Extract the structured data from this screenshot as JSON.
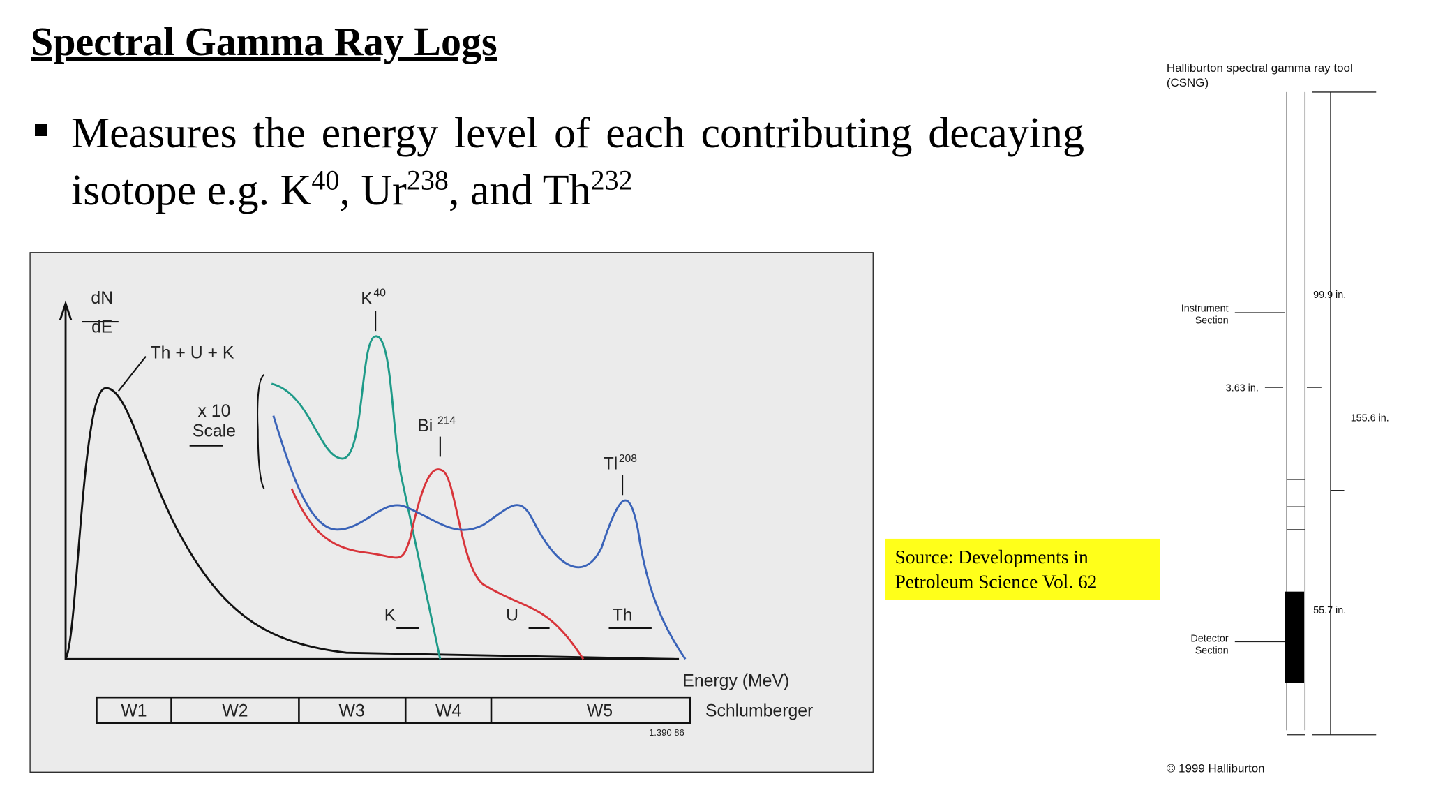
{
  "title": "Spectral Gamma Ray Logs",
  "bullet": [
    "Measures the energy level of each contributing decaying isotope e.g. K",
    "40",
    ", Ur",
    "238",
    ", and Th",
    "232"
  ],
  "figure": {
    "y_label_top": "dN",
    "y_label_bottom": "dE",
    "x_label": "Energy (MeV)",
    "sum_label": "Th + U + K",
    "scale_label": [
      "x 10",
      "Scale"
    ],
    "peaks": [
      {
        "name": "K",
        "sup": "40"
      },
      {
        "name": "Bi",
        "sup": "214"
      },
      {
        "name": "Tl",
        "sup": "208"
      }
    ],
    "arrows": [
      "K",
      "U",
      "Th"
    ],
    "windows": [
      "W1",
      "W2",
      "W3",
      "W4",
      "W5"
    ],
    "credit": "Schlumberger",
    "code": "1.390 86"
  },
  "source": [
    "Source: Developments in",
    "Petroleum Science Vol. 62"
  ],
  "tool": {
    "title": [
      "Halliburton spectral gamma ray tool",
      "(CSNG)"
    ],
    "instrument": [
      "Instrument",
      "Section"
    ],
    "detector": [
      "Detector",
      "Section"
    ],
    "dims": [
      "99.9 in.",
      "3.63 in.",
      "155.6 in.",
      "55.7 in."
    ],
    "copyright": "© 1999 Halliburton"
  }
}
